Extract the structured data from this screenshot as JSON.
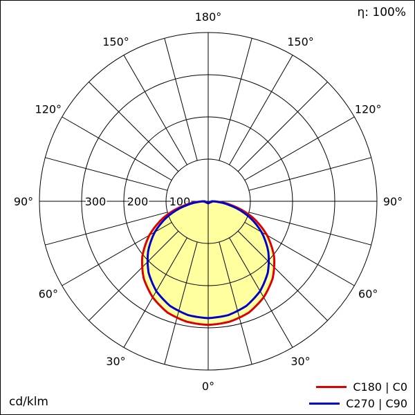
{
  "header": {
    "efficiency_label": "η: 100%"
  },
  "footer": {
    "unit_label": "cd/klm"
  },
  "legend": [
    {
      "label": "C180 | C0",
      "color": "#dd0000"
    },
    {
      "label": "C270 | C90",
      "color": "#0000cc"
    }
  ],
  "chart_data": {
    "type": "polar",
    "subtype": "photometric_intensity_distribution",
    "units": "cd/klm",
    "efficiency_percent": 100,
    "angle_labels_deg": [
      0,
      30,
      60,
      90,
      120,
      150,
      180
    ],
    "spoke_step_deg": 15,
    "radial_ticks": [
      100,
      200,
      300
    ],
    "radial_max": 400,
    "gamma_deg": [
      0,
      10,
      20,
      30,
      40,
      50,
      60,
      70,
      80,
      90
    ],
    "series": [
      {
        "name": "C180 | C0",
        "color": "#dd0000",
        "values": [
          293,
          290,
          281,
          263,
          238,
          204,
          161,
          112,
          58,
          12
        ]
      },
      {
        "name": "C270 | C90",
        "color": "#0000cc",
        "values": [
          277,
          274,
          264,
          246,
          220,
          186,
          146,
          100,
          50,
          8
        ]
      }
    ],
    "fill_color": "#ffffa0",
    "grid_color": "#000000",
    "legend_position": "bottom-right"
  }
}
